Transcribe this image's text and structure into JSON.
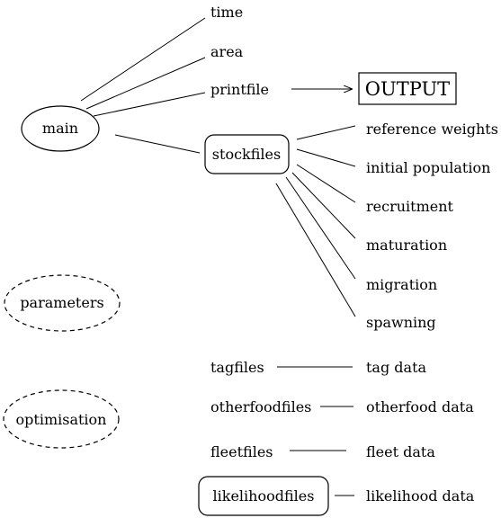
{
  "main": "main",
  "top_items": {
    "time": "time",
    "area": "area",
    "printfile": "printfile",
    "output": "OUTPUT"
  },
  "stock": {
    "label": "stockfiles",
    "children": [
      "reference weights",
      "initial population",
      "recruitment",
      "maturation",
      "migration",
      "spawning"
    ]
  },
  "parameters": "parameters",
  "optimisation": "optimisation",
  "pairs": [
    {
      "file": "tagfiles",
      "data": "tag data"
    },
    {
      "file": "otherfoodfiles",
      "data": "otherfood data"
    },
    {
      "file": "fleetfiles",
      "data": "fleet data"
    },
    {
      "file": "likelihoodfiles",
      "data": "likelihood data"
    }
  ]
}
